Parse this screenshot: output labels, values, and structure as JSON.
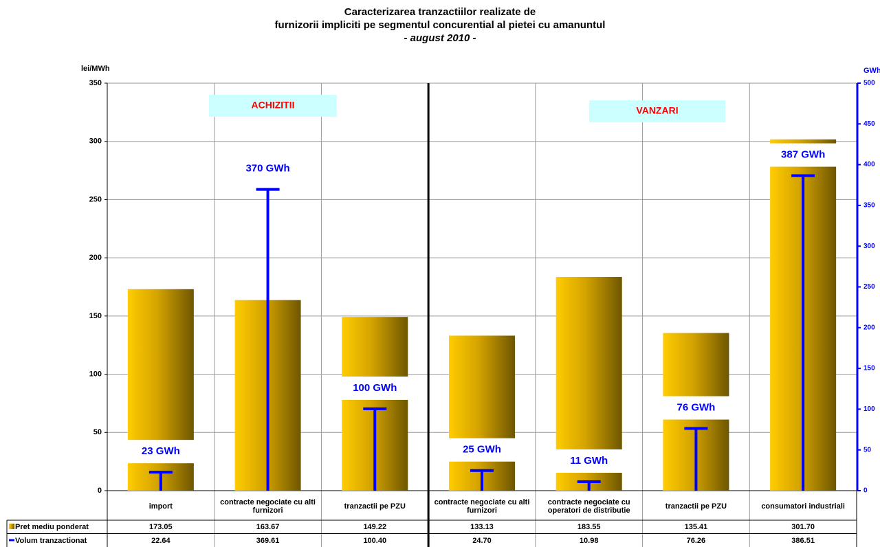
{
  "chart_data": {
    "type": "bar",
    "title": [
      "Caracterizarea tranzactiilor realizate de",
      "furnizorii impliciti pe segmentul concurential al pietei cu amanuntul"
    ],
    "subtitle": "- august 2010 -",
    "ylabel": "lei/MWh",
    "y2label": "GWh",
    "annotations": [
      "ACHIZITII",
      "VANZARI"
    ],
    "categories": [
      "import",
      "contracte negociate cu alti furnizori",
      "tranzactii pe PZU",
      "contracte negociate cu alti furnizori",
      "contracte negociate cu operatori de distributie",
      "tranzactii pe PZU",
      "consumatori industriali"
    ],
    "series": [
      {
        "name": "Pret mediu ponderat",
        "color": "#f2c200",
        "values": [
          173.05,
          163.67,
          149.22,
          133.13,
          183.55,
          135.41,
          301.7
        ],
        "value_labels": [
          "173.05",
          "163.67",
          "149.22",
          "133.13",
          "183.55",
          "135.41",
          "301.70"
        ]
      },
      {
        "name": "Volum tranzactionat",
        "color": "#0000ff",
        "axis": "y2",
        "values": [
          22.64,
          369.61,
          100.4,
          24.7,
          10.98,
          76.26,
          386.51
        ],
        "value_labels": [
          "22.64",
          "369.61",
          "100.40",
          "24.70",
          "10.98",
          "76.26",
          "386.51"
        ],
        "point_labels": [
          "23 GWh",
          "370 GWh",
          "100 GWh",
          "25 GWh",
          "11 GWh",
          "76 GWh",
          "387 GWh"
        ]
      }
    ],
    "ylim": [
      0,
      350
    ],
    "yticks": [
      0,
      50,
      100,
      150,
      200,
      250,
      300,
      350
    ],
    "y2lim": [
      0,
      500
    ],
    "y2ticks": [
      0,
      50,
      100,
      150,
      200,
      250,
      300,
      350,
      400,
      450,
      500
    ],
    "grid": true
  }
}
